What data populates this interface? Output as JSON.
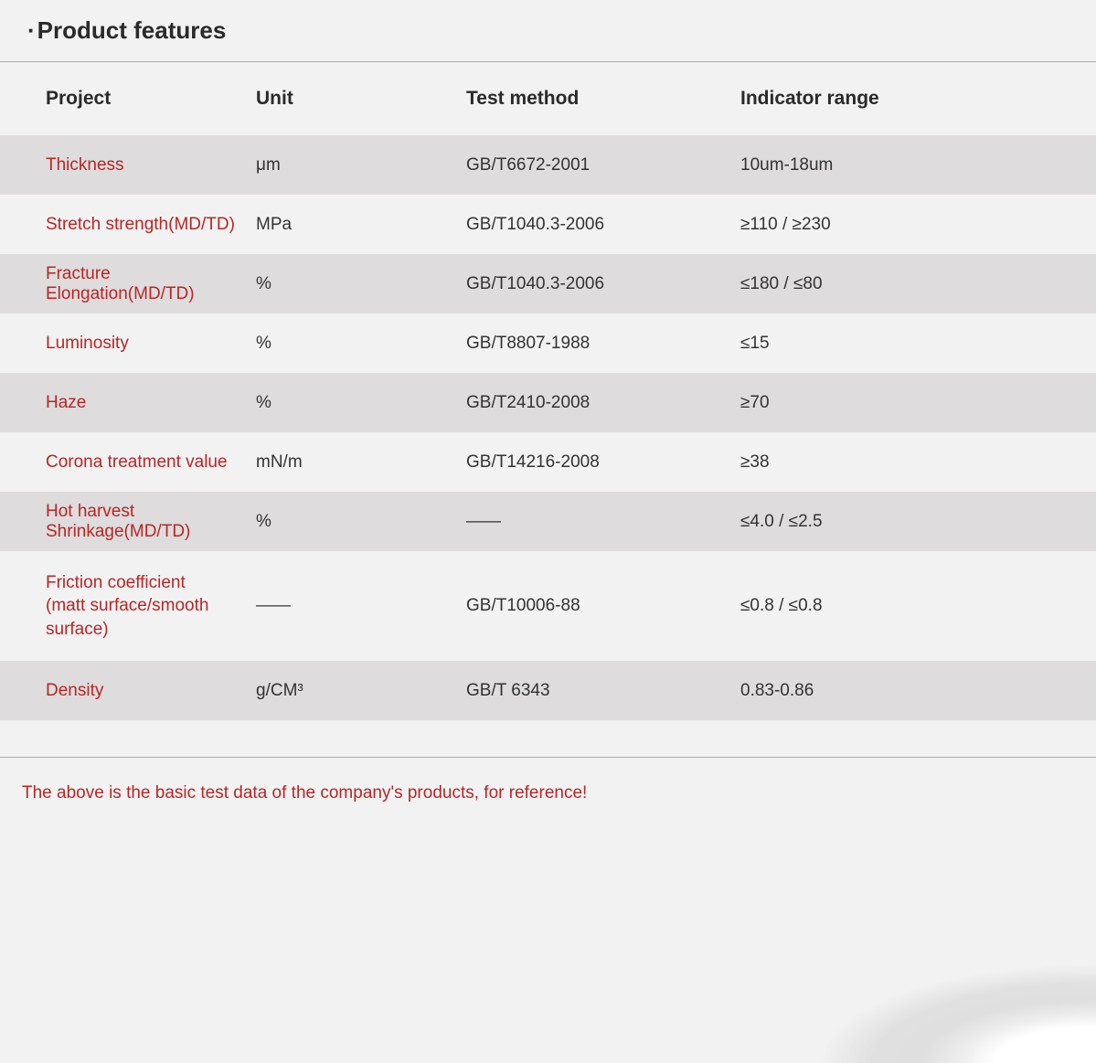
{
  "title": "Product features",
  "colors": {
    "background": "#f2f2f2",
    "row_alt": "#dedcdc",
    "text": "#2a2a2a",
    "project_text": "#b62626",
    "footnote_text": "#b62626",
    "divider": "#aaaaaa"
  },
  "table": {
    "columns": [
      "Project",
      "Unit",
      "Test method",
      "Indicator range"
    ],
    "rows": [
      {
        "project": "Thickness",
        "unit": "μm",
        "test_method": "GB/T6672-2001",
        "indicator": "10um-18um"
      },
      {
        "project": "Stretch strength(MD/TD)",
        "unit": "MPa",
        "test_method": "GB/T1040.3-2006",
        "indicator": "≥110 / ≥230"
      },
      {
        "project": "Fracture Elongation(MD/TD)",
        "unit": "%",
        "test_method": "GB/T1040.3-2006",
        "indicator": "≤180 / ≤80"
      },
      {
        "project": "Luminosity",
        "unit": "%",
        "test_method": "GB/T8807-1988",
        "indicator": "≤15"
      },
      {
        "project": "Haze",
        "unit": "%",
        "test_method": "GB/T2410-2008",
        "indicator": "≥70"
      },
      {
        "project": "Corona treatment value",
        "unit": "mN/m",
        "test_method": "GB/T14216-2008",
        "indicator": "≥38"
      },
      {
        "project": "Hot harvest Shrinkage(MD/TD)",
        "unit": "%",
        "test_method": "——",
        "indicator": "≤4.0 / ≤2.5"
      },
      {
        "project": "Friction coefficient\n(matt surface/smooth surface)",
        "unit": "——",
        "test_method": "GB/T10006-88",
        "indicator": "≤0.8 / ≤0.8",
        "tall": true
      },
      {
        "project": "Density",
        "unit": "g/CM³",
        "test_method": "GB/T 6343",
        "indicator": "0.83-0.86"
      }
    ]
  },
  "footnote": "The above is the basic test data of the company's products, for reference!"
}
